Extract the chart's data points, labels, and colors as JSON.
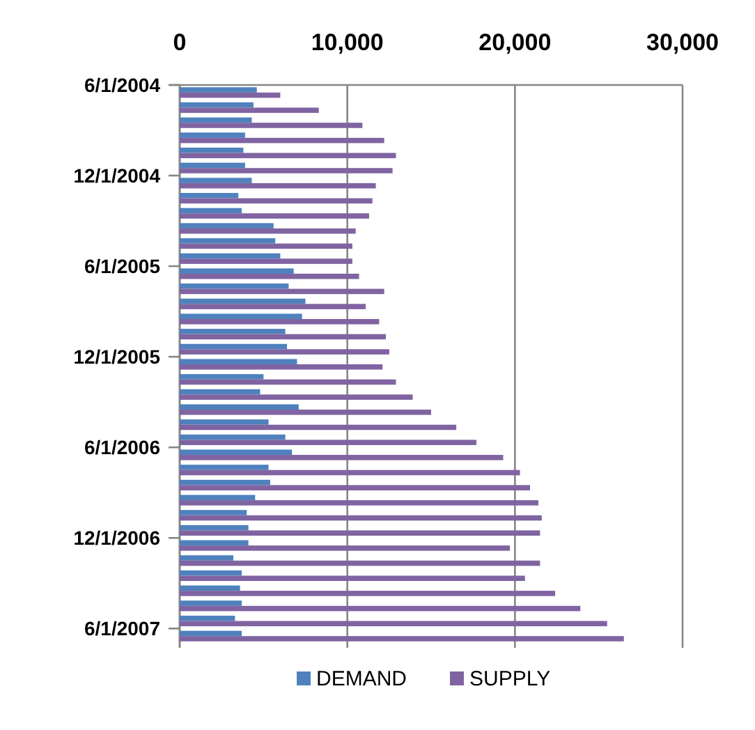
{
  "chart_data": {
    "type": "bar",
    "orientation": "horizontal",
    "categories": [
      "6/1/2004",
      null,
      null,
      null,
      null,
      null,
      "12/1/2004",
      null,
      null,
      null,
      null,
      null,
      "6/1/2005",
      null,
      null,
      null,
      null,
      null,
      "12/1/2005",
      null,
      null,
      null,
      null,
      null,
      "6/1/2006",
      null,
      null,
      null,
      null,
      null,
      "12/1/2006",
      null,
      null,
      null,
      null,
      null,
      "6/1/2007"
    ],
    "series": [
      {
        "name": "DEMAND",
        "color": "#4f81bd",
        "values": [
          4600,
          4400,
          4300,
          3900,
          3800,
          3900,
          4300,
          3500,
          3700,
          5600,
          5700,
          6000,
          6800,
          6500,
          7500,
          7300,
          6300,
          6400,
          7000,
          5000,
          4800,
          7100,
          5300,
          6300,
          6700,
          5300,
          5400,
          4500,
          4000,
          4100,
          4100,
          3200,
          3700,
          3600,
          3700,
          3300,
          3700
        ]
      },
      {
        "name": "SUPPLY",
        "color": "#8064a2",
        "values": [
          6000,
          8300,
          10900,
          12200,
          12900,
          12700,
          11700,
          11500,
          11300,
          10500,
          10300,
          10300,
          10700,
          12200,
          11100,
          11900,
          12300,
          12500,
          12100,
          12900,
          13900,
          15000,
          16500,
          17700,
          19300,
          20300,
          20900,
          21400,
          21600,
          21500,
          19700,
          21500,
          20600,
          22400,
          23900,
          25500,
          26500
        ]
      }
    ],
    "xlim": [
      0,
      30000
    ],
    "xticks": [
      {
        "value": 0,
        "label": "0"
      },
      {
        "value": 10000,
        "label": "10,000"
      },
      {
        "value": 20000,
        "label": "20,000"
      },
      {
        "value": 30000,
        "label": "30,000"
      }
    ],
    "grid": "x",
    "legend": "bottom"
  }
}
